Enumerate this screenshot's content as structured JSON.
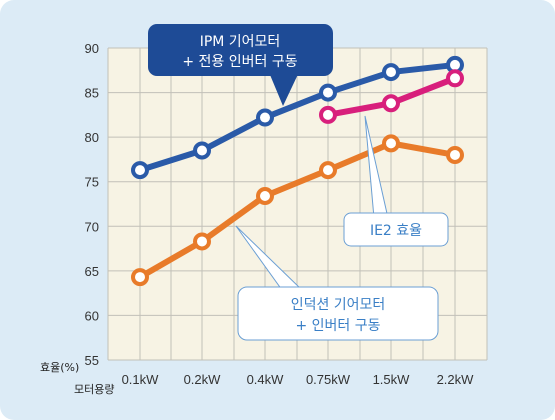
{
  "chart_data": {
    "type": "line",
    "categories": [
      "0.1kW",
      "0.2kW",
      "0.4kW",
      "0.75kW",
      "1.5kW",
      "2.2kW"
    ],
    "yticks": [
      "55",
      "60",
      "65",
      "70",
      "75",
      "80",
      "85",
      "90"
    ],
    "ylim": [
      55,
      90
    ],
    "grid": true,
    "ylabel": "효율(%)",
    "xlabel": "모터용량",
    "series": [
      {
        "name": "IPM 기어모터 + 전용 인버터 구동",
        "color": "#2a5aa8",
        "values": [
          76.3,
          78.5,
          82.2,
          85.0,
          87.3,
          88.1
        ]
      },
      {
        "name": "IE2 효율",
        "color": "#d81f7c",
        "values": [
          null,
          null,
          null,
          82.5,
          83.8,
          86.6
        ]
      },
      {
        "name": "인덕션 기어모터 + 인버터 구동",
        "color": "#e87b2a",
        "values": [
          64.3,
          68.3,
          73.4,
          76.3,
          79.3,
          78.0
        ]
      }
    ],
    "callouts": {
      "ipm": {
        "line1": "IPM 기어모터",
        "line2": "+ 전용 인버터 구동"
      },
      "ie2": {
        "line1": "IE2 효율"
      },
      "induction": {
        "line1": "인덕션 기어모터",
        "line2": "+ 인버터 구동"
      }
    }
  },
  "colors": {
    "background": "#dcebf6",
    "plot_background": "#f7f3e4",
    "grid": "#c2c0b8",
    "ipm_callout_fill": "#1e4b96",
    "light_callout_fill": "#ffffff",
    "light_callout_text": "#3a7fc6"
  }
}
